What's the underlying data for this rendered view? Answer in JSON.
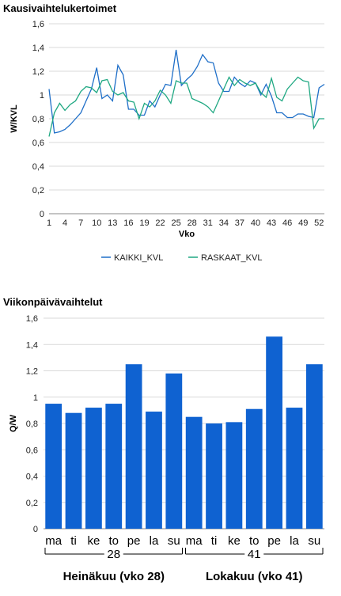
{
  "chart_data": [
    {
      "type": "line",
      "title": "Kausivaihtelukertoimet",
      "xlabel": "Vko",
      "ylabel": "W/KVL",
      "ylim": [
        0,
        1.6
      ],
      "y_ticks": [
        "0",
        "0,2",
        "0,4",
        "0,6",
        "0,8",
        "1",
        "1,2",
        "1,4",
        "1,6"
      ],
      "x_ticks": [
        "1",
        "4",
        "7",
        "10",
        "13",
        "16",
        "19",
        "22",
        "25",
        "28",
        "31",
        "34",
        "37",
        "40",
        "43",
        "46",
        "49",
        "52"
      ],
      "grid": true,
      "legend_position": "bottom",
      "x": [
        1,
        2,
        3,
        4,
        5,
        6,
        7,
        8,
        9,
        10,
        11,
        12,
        13,
        14,
        15,
        16,
        17,
        18,
        19,
        20,
        21,
        22,
        23,
        24,
        25,
        26,
        27,
        28,
        29,
        30,
        31,
        32,
        33,
        34,
        35,
        36,
        37,
        38,
        39,
        40,
        41,
        42,
        43,
        44,
        45,
        46,
        47,
        48,
        49,
        50,
        51,
        52,
        53
      ],
      "series": [
        {
          "name": "KAIKKI_KVL",
          "color": "#1f6fc8",
          "values": [
            1.05,
            0.68,
            0.69,
            0.71,
            0.75,
            0.8,
            0.85,
            0.95,
            1.05,
            1.23,
            0.97,
            1.0,
            0.95,
            1.25,
            1.17,
            0.88,
            0.88,
            0.83,
            0.83,
            0.95,
            0.9,
            1.0,
            1.09,
            1.08,
            1.38,
            1.08,
            1.13,
            1.17,
            1.24,
            1.34,
            1.28,
            1.27,
            1.1,
            1.03,
            1.03,
            1.15,
            1.1,
            1.07,
            1.12,
            1.1,
            1.0,
            1.09,
            0.99,
            0.85,
            0.85,
            0.81,
            0.81,
            0.84,
            0.84,
            0.82,
            0.81,
            1.06,
            1.09
          ]
        },
        {
          "name": "RASKAAT_KVL",
          "color": "#1fa882",
          "values": [
            0.65,
            0.85,
            0.93,
            0.87,
            0.92,
            0.95,
            1.03,
            1.07,
            1.06,
            1.02,
            1.12,
            1.13,
            1.03,
            1.0,
            1.02,
            0.95,
            0.94,
            0.8,
            0.93,
            0.9,
            0.95,
            1.04,
            1.0,
            0.93,
            1.12,
            1.1,
            1.1,
            0.97,
            0.95,
            0.93,
            0.9,
            0.85,
            0.95,
            1.05,
            1.15,
            1.08,
            1.13,
            1.1,
            1.08,
            1.1,
            1.02,
            0.98,
            1.14,
            0.98,
            0.95,
            1.05,
            1.1,
            1.15,
            1.12,
            1.11,
            0.72,
            0.8,
            0.8
          ]
        }
      ]
    },
    {
      "type": "bar",
      "title": "Viikonpäivävaihtelut",
      "ylabel": "Q/W",
      "ylim": [
        0,
        1.6
      ],
      "y_ticks": [
        "0",
        "0,2",
        "0,4",
        "0,6",
        "0,8",
        "1",
        "1,2",
        "1,4",
        "1,6"
      ],
      "grid": true,
      "color": "#0f62d1",
      "categories": [
        "ma",
        "ti",
        "ke",
        "to",
        "pe",
        "la",
        "su",
        "ma",
        "ti",
        "ke",
        "to",
        "pe",
        "la",
        "su"
      ],
      "values": [
        0.95,
        0.88,
        0.92,
        0.95,
        1.25,
        0.89,
        1.18,
        0.85,
        0.8,
        0.81,
        0.91,
        1.46,
        0.92,
        1.25
      ],
      "groups": [
        {
          "week": "28",
          "month": "Heinäkuu (vko 28)"
        },
        {
          "week": "41",
          "month": "Lokakuu (vko 41)"
        }
      ]
    }
  ]
}
